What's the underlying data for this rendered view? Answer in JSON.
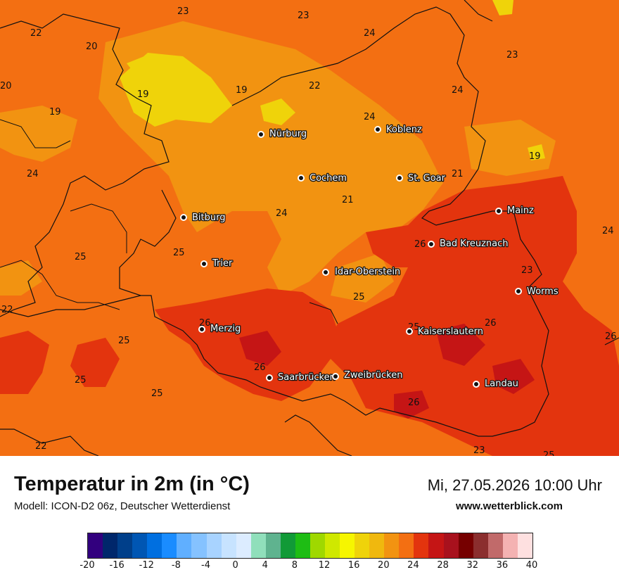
{
  "title": "Temperatur in 2m (in °C)",
  "model": "Modell: ICON-D2 06z, Deutscher Wetterdienst",
  "datetime": "Mi, 27.05.2026 10:00 Uhr",
  "website": "www.wetterblick.com",
  "cities": [
    {
      "name": "Nürburg"
    },
    {
      "name": "Koblenz"
    },
    {
      "name": "Cochem"
    },
    {
      "name": "St. Goar"
    },
    {
      "name": "Bitburg"
    },
    {
      "name": "Mainz"
    },
    {
      "name": "Bad Kreuznach"
    },
    {
      "name": "Trier"
    },
    {
      "name": "Idar-Oberstein"
    },
    {
      "name": "Worms"
    },
    {
      "name": "Merzig"
    },
    {
      "name": "Kaiserslautern"
    },
    {
      "name": "Saarbrücken"
    },
    {
      "name": "Zweibrücken"
    },
    {
      "name": "Landau"
    }
  ],
  "temperature_labels": [
    "23",
    "23",
    "22",
    "20",
    "24",
    "20",
    "23",
    "19",
    "19",
    "22",
    "24",
    "19",
    "24",
    "24",
    "21",
    "19",
    "21",
    "24",
    "24",
    "25",
    "25",
    "26",
    "23",
    "22",
    "25",
    "26",
    "25",
    "26",
    "25",
    "26",
    "25",
    "26",
    "25",
    "22",
    "23",
    "25",
    "26"
  ],
  "colorbar": {
    "colors": [
      "#32007e",
      "#00276b",
      "#003f8a",
      "#0056b3",
      "#006fe0",
      "#1a8cff",
      "#60afff",
      "#85c2ff",
      "#a8d3ff",
      "#c7e3ff",
      "#dcecff",
      "#90dfbb",
      "#5fb38f",
      "#119a37",
      "#1ebd14",
      "#9fd800",
      "#cfe800",
      "#f6f600",
      "#efd30a",
      "#f0b80e",
      "#f29311",
      "#f36f12",
      "#e3340e",
      "#c51515",
      "#a8111d",
      "#760000",
      "#8b2e2e",
      "#c16a6a",
      "#f4b2b2",
      "#fee0e0"
    ],
    "ticks": [
      "-20",
      "-16",
      "-12",
      "-8",
      "-4",
      "0",
      "4",
      "8",
      "12",
      "16",
      "20",
      "24",
      "28",
      "32",
      "36",
      "40"
    ]
  }
}
